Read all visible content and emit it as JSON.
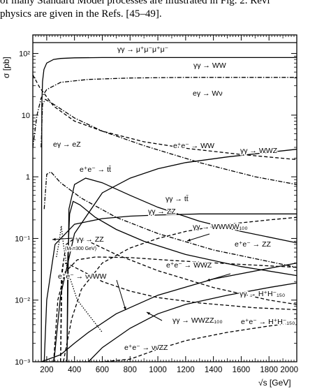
{
  "page": {
    "header_line1": "of many Standard Model processes are illustrated in Fig. 2. Revi",
    "header_line2": "physics are given in the Refs. [45–49]."
  },
  "chart_data": {
    "type": "line",
    "title": "",
    "xlabel": "√s [GeV]",
    "ylabel": "σ [pb]",
    "xlim": [
      100,
      2000
    ],
    "ylim": [
      0.001,
      200
    ],
    "yscale": "log",
    "grid": false,
    "legend": "none",
    "x_ticks": [
      200,
      400,
      600,
      800,
      1000,
      1200,
      1400,
      1600,
      1800,
      2000
    ],
    "x_tick_labels": [
      "200",
      "400",
      "600",
      "800",
      "1000",
      "1200",
      "1400",
      "1600",
      "1800",
      "2000"
    ],
    "y_ticks": [
      0.001,
      0.01,
      0.1,
      1,
      10,
      100
    ],
    "y_tick_labels": [
      "10⁻³",
      "10⁻²",
      "10⁻¹",
      "1",
      "10",
      "10²"
    ],
    "series": [
      {
        "name": "γγ → μ⁺μ⁻μ⁺μ⁻",
        "style": "solid",
        "x": [
          100,
          2000
        ],
        "y": [
          150,
          150
        ]
      },
      {
        "name": "γγ → WW",
        "style": "solid",
        "x": [
          161,
          165,
          170,
          180,
          200,
          250,
          300,
          400,
          600,
          1000,
          1500,
          2000
        ],
        "y": [
          0.001,
          15,
          35,
          55,
          70,
          80,
          83,
          85,
          86,
          86,
          86,
          86
        ]
      },
      {
        "name": "eγ → Wν",
        "style": "dashdot",
        "x": [
          100,
          130,
          160,
          200,
          300,
          500,
          800,
          1200,
          1600,
          2000
        ],
        "y": [
          3,
          10,
          19,
          26,
          34,
          38,
          40,
          41,
          41,
          41
        ]
      },
      {
        "name": "e⁺e⁻ → WW",
        "style": "dashdot",
        "x": [
          160,
          170,
          190,
          250,
          400,
          600,
          900,
          1300,
          1700,
          2000
        ],
        "y": [
          3,
          15,
          18,
          15,
          9,
          5.5,
          3.2,
          1.7,
          1.0,
          0.75
        ]
      },
      {
        "name": "eγ → eZ",
        "style": "dashed",
        "x": [
          100,
          150,
          250,
          400,
          600,
          900,
          1200,
          1600,
          2000
        ],
        "y": [
          45,
          28,
          14,
          8,
          5.5,
          3.7,
          2.9,
          2.3,
          1.9
        ]
      },
      {
        "name": "γγ → WWZ",
        "style": "solid",
        "x": [
          252,
          300,
          400,
          600,
          800,
          1000,
          1200,
          1500,
          2000
        ],
        "y": [
          0.001,
          0.012,
          0.12,
          0.55,
          0.95,
          1.35,
          1.7,
          2.1,
          2.8
        ]
      },
      {
        "name": "e⁺e⁻ → tt̄",
        "style": "solid",
        "x": [
          346,
          360,
          400,
          480,
          600,
          800,
          1000,
          1300,
          1600,
          2000
        ],
        "y": [
          0.001,
          0.3,
          0.75,
          0.95,
          0.8,
          0.5,
          0.32,
          0.19,
          0.13,
          0.085
        ]
      },
      {
        "name": "γγ → tt̄",
        "style": "solid",
        "x": [
          346,
          352,
          365,
          390,
          440,
          550,
          700,
          900,
          1200,
          1600,
          2000
        ],
        "y": [
          0.001,
          0.05,
          0.25,
          0.4,
          0.35,
          0.22,
          0.14,
          0.09,
          0.055,
          0.035,
          0.025
        ]
      },
      {
        "name": "γγ → ZZ",
        "style": "solid",
        "x": [
          182,
          200,
          260,
          400,
          600,
          800,
          1000,
          1300,
          1600,
          2000
        ],
        "y": [
          0.001,
          0.01,
          0.08,
          0.17,
          0.21,
          0.23,
          0.24,
          0.25,
          0.25,
          0.25
        ]
      },
      {
        "name": "γγ → WWWW₁₀₀",
        "style": "dashed",
        "x": [
          320,
          380,
          450,
          600,
          800,
          1000,
          1200,
          1500,
          1800,
          2000
        ],
        "y": [
          0.001,
          0.005,
          0.015,
          0.04,
          0.07,
          0.1,
          0.13,
          0.17,
          0.2,
          0.22
        ]
      },
      {
        "name": "γγ → ZZ (Mₕ=300 GeV)",
        "style": "dotted",
        "x": [
          270,
          290,
          305,
          320,
          350,
          420,
          600
        ],
        "y": [
          0.05,
          0.09,
          0.16,
          0.08,
          0.03,
          0.01,
          0.003
        ]
      },
      {
        "name": "e⁺e⁻ → ZZ",
        "style": "dashdot",
        "x": [
          182,
          200,
          230,
          300,
          450,
          700,
          1000,
          1400,
          2000
        ],
        "y": [
          0.3,
          1.1,
          1.2,
          0.8,
          0.45,
          0.22,
          0.12,
          0.065,
          0.034
        ]
      },
      {
        "name": "e⁺e⁻ → WWZ",
        "style": "dashed",
        "x": [
          250,
          280,
          330,
          420,
          550,
          800,
          1100,
          1500,
          2000
        ],
        "y": [
          0.001,
          0.01,
          0.028,
          0.045,
          0.05,
          0.049,
          0.044,
          0.039,
          0.034
        ]
      },
      {
        "name": "e⁺e⁻ → νν̄WW",
        "style": "solid",
        "x": [
          161,
          300,
          400,
          500,
          700,
          1000,
          1400,
          2000
        ],
        "y": [
          0.001,
          0.0013,
          0.002,
          0.003,
          0.006,
          0.012,
          0.022,
          0.04
        ]
      },
      {
        "name": "γγ → H⁺H⁻₁₅₀",
        "style": "dashed",
        "x": [
          300,
          305,
          320,
          360,
          450,
          600,
          800,
          1000,
          1300,
          1700,
          2000
        ],
        "y": [
          0.001,
          0.02,
          0.04,
          0.038,
          0.03,
          0.02,
          0.014,
          0.011,
          0.009,
          0.0075,
          0.007
        ]
      },
      {
        "name": "γγ → WWZZ₁₀₀",
        "style": "solid",
        "x": [
          500,
          600,
          800,
          1000,
          1200,
          1500,
          1800,
          2000
        ],
        "y": [
          0.001,
          0.0017,
          0.0035,
          0.006,
          0.0085,
          0.012,
          0.016,
          0.019
        ]
      },
      {
        "name": "e⁺e⁻ → H⁺H⁻₁₅₀",
        "style": "dashed",
        "x": [
          300,
          310,
          340,
          400,
          500,
          700,
          1000,
          1400,
          1800,
          2000
        ],
        "y": [
          0.001,
          0.03,
          0.08,
          0.1,
          0.09,
          0.055,
          0.03,
          0.016,
          0.01,
          0.0085
        ]
      },
      {
        "name": "e⁺e⁻ → νν̄ZZ",
        "style": "dashed",
        "x": [
          182,
          400,
          600,
          800,
          1000,
          1200,
          1500,
          1800,
          2000
        ],
        "y": [
          0.0006,
          0.00065,
          0.00075,
          0.0011,
          0.0016,
          0.0022,
          0.003,
          0.0038,
          0.0043
        ]
      }
    ],
    "annotations": [
      {
        "text": "γγ → μ⁺μ⁻μ⁺μ⁻"
      },
      {
        "text": "γγ → WW"
      },
      {
        "text": "eγ → Wν"
      },
      {
        "text": "eγ → eZ"
      },
      {
        "text": "e⁺e⁻ → WW"
      },
      {
        "text": "γγ → WWZ"
      },
      {
        "text": "e⁺e⁻ → tt̄"
      },
      {
        "text": "γγ → tt̄"
      },
      {
        "text": "γγ → ZZ"
      },
      {
        "text": "γγ → WWWW₁₀₀"
      },
      {
        "text": "γγ → ZZ"
      },
      {
        "text": "(Mₕ=300 GeV)"
      },
      {
        "text": "e⁺e⁻ → ZZ"
      },
      {
        "text": "e⁺e⁻ → WWZ"
      },
      {
        "text": "e⁺e⁻ → νν̄WW"
      },
      {
        "text": "γγ → H⁺H⁻₁₅₀"
      },
      {
        "text": "γγ → WWZZ₁₀₀"
      },
      {
        "text": "e⁺e⁻ → H⁺H⁻₁₅₀"
      },
      {
        "text": "e⁺e⁻ → νν̄ZZ"
      }
    ]
  }
}
